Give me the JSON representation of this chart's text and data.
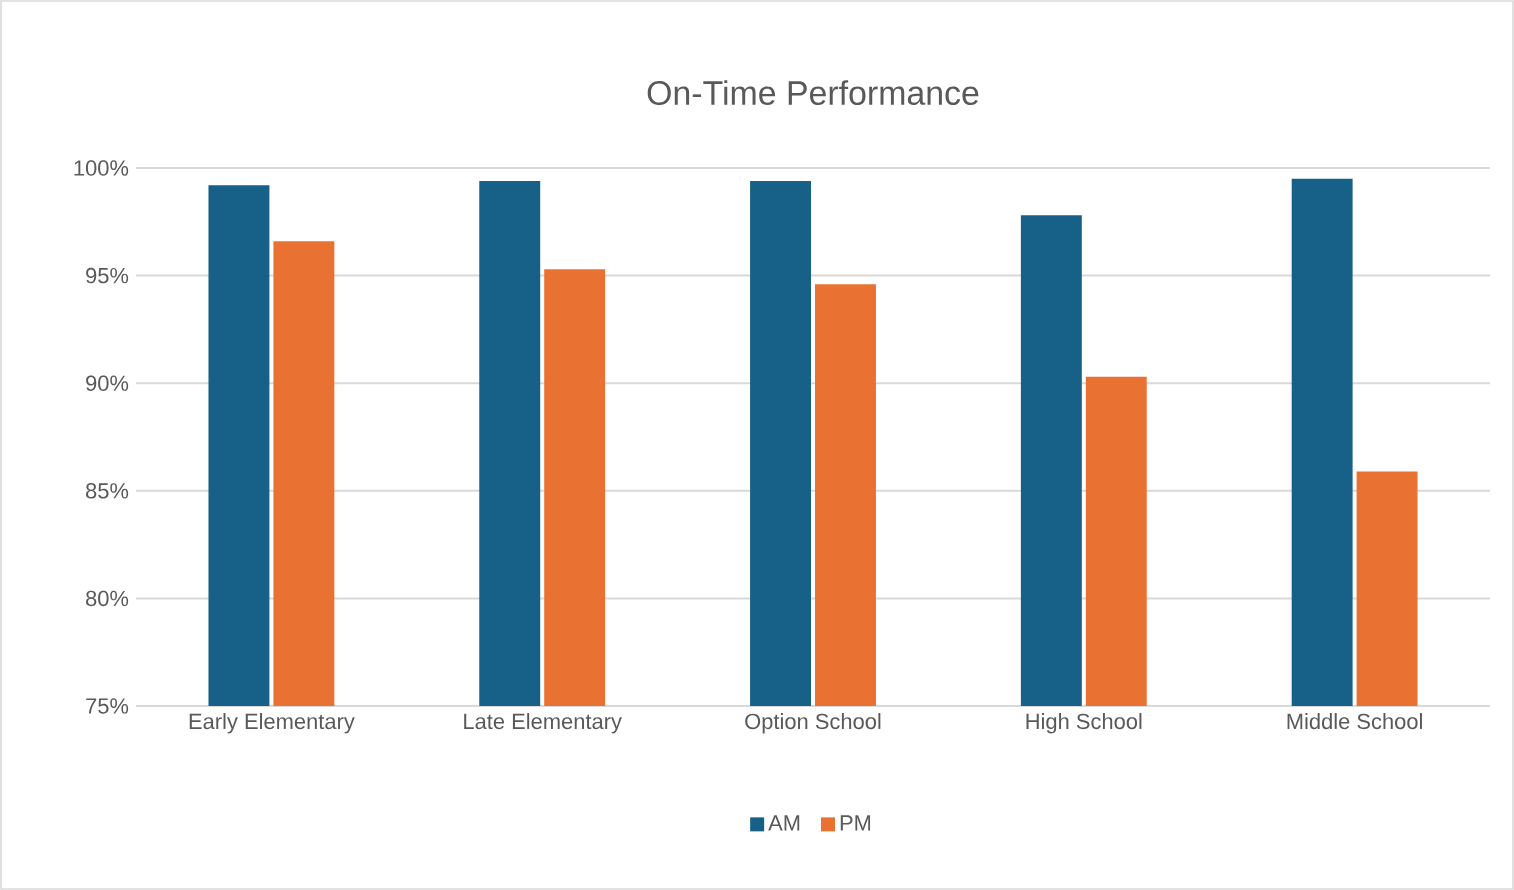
{
  "chart_data": {
    "type": "bar",
    "title": "On-Time Performance",
    "categories": [
      "Early Elementary",
      "Late Elementary",
      "Option School",
      "High School",
      "Middle School"
    ],
    "series": [
      {
        "name": "AM",
        "color": "#176087",
        "values": [
          99.2,
          99.4,
          99.4,
          97.8,
          99.5
        ]
      },
      {
        "name": "PM",
        "color": "#e97132",
        "values": [
          96.6,
          95.3,
          94.6,
          90.3,
          85.9
        ]
      }
    ],
    "ylim": [
      75,
      100
    ],
    "yticks": [
      {
        "value": 75,
        "label": "75%"
      },
      {
        "value": 80,
        "label": "80%"
      },
      {
        "value": 85,
        "label": "85%"
      },
      {
        "value": 90,
        "label": "90%"
      },
      {
        "value": 95,
        "label": "95%"
      },
      {
        "value": 100,
        "label": "100%"
      }
    ],
    "grid": "y",
    "legend": "bottom"
  }
}
